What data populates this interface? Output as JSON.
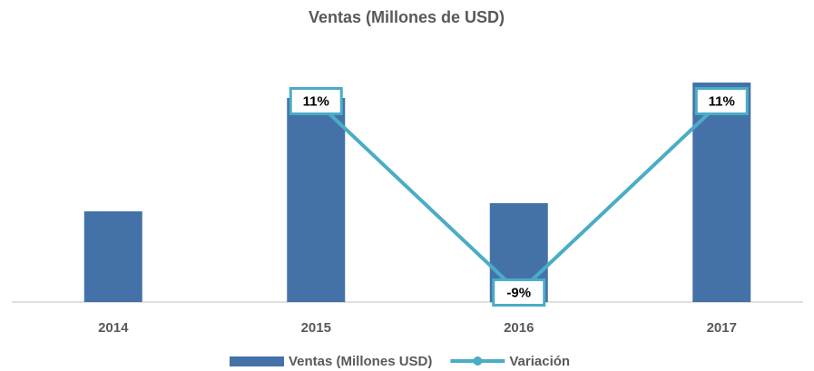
{
  "chart_data": {
    "type": "bar",
    "title": "Ventas (Millones de USD)",
    "categories": [
      "2014",
      "2015",
      "2016",
      "2017"
    ],
    "series": [
      {
        "name": "Ventas (Millones USD)",
        "type": "bar",
        "color": "#4472a8",
        "values": [
          100,
          225,
          109,
          242
        ]
      },
      {
        "name": "Variación",
        "type": "line",
        "axis": "y2",
        "color": "#4bacc6",
        "values": [
          null,
          11,
          -9,
          11
        ],
        "value_labels": [
          null,
          "11%",
          "-9%",
          "11%"
        ]
      }
    ],
    "ylim": [
      0,
      250
    ],
    "y2lim": [
      -10,
      13.7
    ],
    "legend": "bottom"
  }
}
